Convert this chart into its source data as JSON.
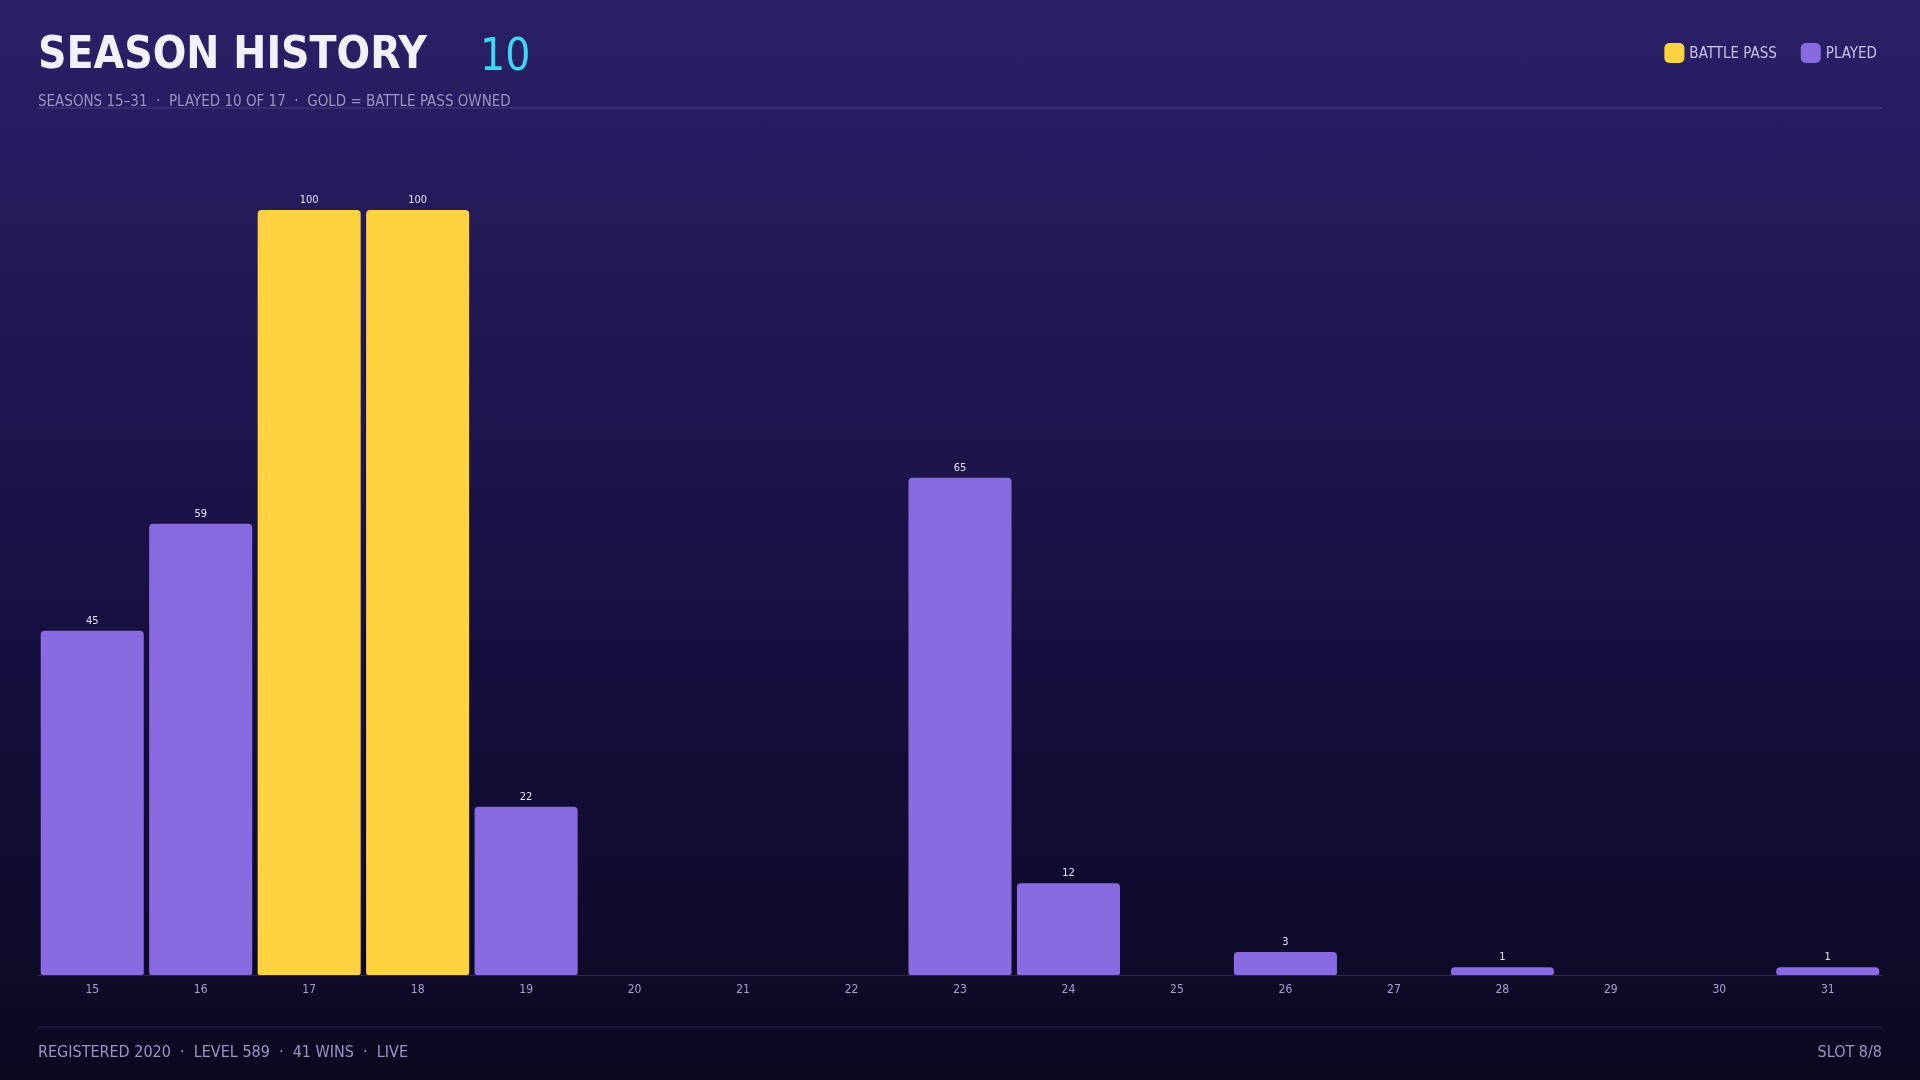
{
  "chart_data": {
    "type": "bar",
    "title": "SEASON HISTORY",
    "subtitle": "SEASONS 15–31  ·  PLAYED 10 OF 17  ·  GOLD = BATTLE PASS OWNED",
    "annotations": [
      "10",
      "REGISTERED 2020  ·  LEVEL 589  ·  41 WINS  ·  LIVE",
      "SLOT 8/8"
    ],
    "categories": [
      "15",
      "16",
      "17",
      "18",
      "19",
      "20",
      "21",
      "22",
      "23",
      "24",
      "25",
      "26",
      "27",
      "28",
      "29",
      "30",
      "31"
    ],
    "stacked": true,
    "data_labels": true,
    "legend": "top right",
    "grid": false,
    "series": [
      {
        "name": "BATTLE PASS",
        "color": "#ffd23f",
        "values": [
          null,
          null,
          100,
          100,
          null,
          null,
          null,
          null,
          null,
          null,
          null,
          null,
          null,
          null,
          null,
          null,
          null
        ]
      },
      {
        "name": "PLAYED",
        "color": "#8a6ae0",
        "values": [
          45,
          59,
          null,
          null,
          22,
          null,
          null,
          null,
          65,
          12,
          null,
          3,
          null,
          1,
          null,
          null,
          1
        ]
      }
    ]
  }
}
